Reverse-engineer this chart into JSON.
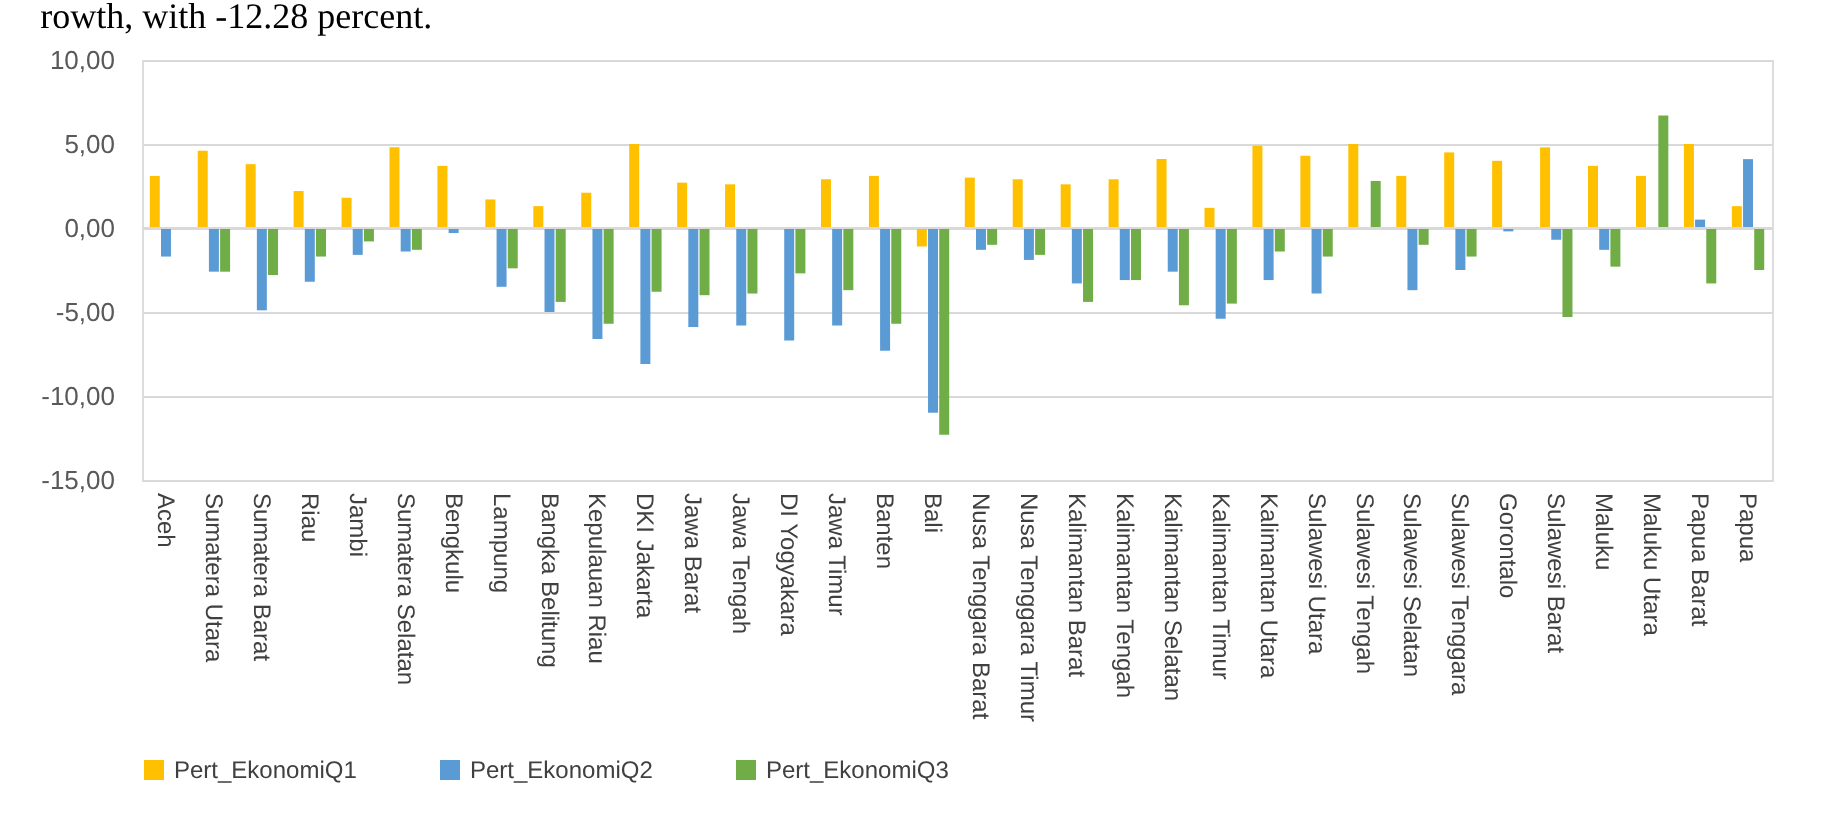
{
  "chart_data": {
    "type": "bar",
    "annotations": [
      "rowth, with -12.28 percent."
    ],
    "categories": [
      "Aceh",
      "Sumatera Utara",
      "Sumatera Barat",
      "Riau",
      "Jambi",
      "Sumatera Selatan",
      "Bengkulu",
      "Lampung",
      "Bangka Belitung",
      "Kepulauan Riau",
      "DKI Jakarta",
      "Jawa Barat",
      "Jawa Tengah",
      "DI Yogyakara",
      "Jawa Timur",
      "Banten",
      "Bali",
      "Nusa Tenggara Barat",
      "Nusa Tenggara Timur",
      "Kalimantan Barat",
      "Kalimantan Tengah",
      "Kalimantan Selatan",
      "Kalimantan Timur",
      "Kalimantan Utara",
      "Sulawesi Utara",
      "Sulawesi Tengah",
      "Sulawesi Selatan",
      "Sulawesi Tenggara",
      "Gorontalo",
      "Sulawesi Barat",
      "Maluku",
      "Maluku Utara",
      "Papua Barat",
      "Papua"
    ],
    "series": [
      {
        "name": "Pert_EkonomiQ1",
        "color": "#ffc000",
        "values": [
          3.1,
          4.6,
          3.8,
          2.2,
          1.8,
          4.8,
          3.7,
          1.7,
          1.3,
          2.1,
          5.0,
          2.7,
          2.6,
          null,
          2.9,
          3.1,
          -1.1,
          3.0,
          2.9,
          2.6,
          2.9,
          4.1,
          1.2,
          4.9,
          4.3,
          5.0,
          3.1,
          4.5,
          4.0,
          4.8,
          3.7,
          3.1,
          5.0,
          1.3
        ]
      },
      {
        "name": "Pert_EkonomiQ2",
        "color": "#5b9bd5",
        "values": [
          -1.7,
          -2.6,
          -4.9,
          -3.2,
          -1.6,
          -1.4,
          -0.3,
          -3.5,
          -5.0,
          -6.6,
          -8.1,
          -5.9,
          -5.8,
          -6.7,
          -5.8,
          -7.3,
          -11.0,
          -1.3,
          -1.9,
          -3.3,
          -3.1,
          -2.6,
          -5.4,
          -3.1,
          -3.9,
          null,
          -3.7,
          -2.5,
          -0.2,
          -0.7,
          -1.3,
          null,
          0.5,
          4.1
        ]
      },
      {
        "name": "Pert_EkonomiQ3",
        "color": "#70ad47",
        "values": [
          null,
          -2.6,
          -2.8,
          -1.7,
          -0.8,
          -1.3,
          null,
          -2.4,
          -4.4,
          -5.7,
          -3.8,
          -4.0,
          -3.9,
          -2.7,
          -3.7,
          -5.7,
          -12.3,
          -1.0,
          -1.6,
          -4.4,
          -3.1,
          -4.6,
          -4.5,
          -1.4,
          -1.7,
          2.8,
          -1.0,
          -1.7,
          null,
          -5.3,
          -2.3,
          6.7,
          -3.3,
          -2.5
        ]
      }
    ],
    "ylim": [
      -15,
      10
    ],
    "yticks": [
      {
        "value": -15,
        "label": "-15,00"
      },
      {
        "value": -10,
        "label": "-10,00"
      },
      {
        "value": -5,
        "label": "-5,00"
      },
      {
        "value": 0,
        "label": "0,00"
      },
      {
        "value": 5,
        "label": "5,00"
      },
      {
        "value": 10,
        "label": "10,00"
      }
    ],
    "grid": "y",
    "legend": "bottom"
  }
}
